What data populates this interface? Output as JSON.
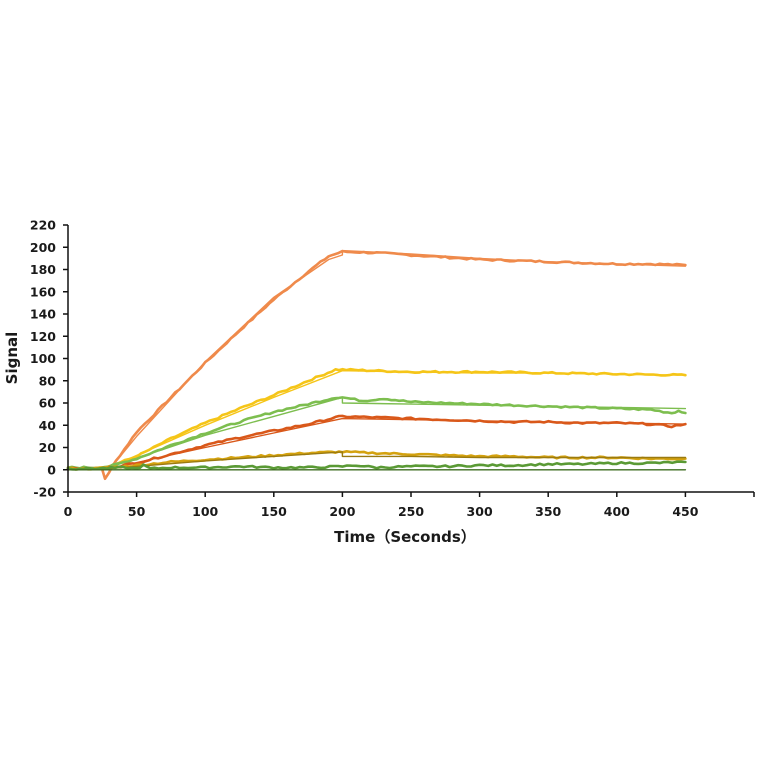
{
  "chart_data": {
    "type": "line",
    "title": "",
    "xlabel": "Time（Seconds）",
    "ylabel": "Signal",
    "xlim": [
      0,
      500
    ],
    "ylim": [
      -20,
      220
    ],
    "xticks": [
      0,
      50,
      100,
      150,
      200,
      250,
      300,
      350,
      400,
      450
    ],
    "yticks": [
      -20,
      0,
      20,
      40,
      60,
      80,
      100,
      120,
      140,
      160,
      180,
      200,
      220
    ],
    "grid": false,
    "legend": null,
    "association_end": 200,
    "series": [
      {
        "name": "curve-1-data",
        "color": "#EF8A4B",
        "kind": "data",
        "x": [
          0,
          10,
          20,
          25,
          27,
          30,
          35,
          50,
          75,
          100,
          125,
          150,
          175,
          190,
          200,
          225,
          250,
          275,
          300,
          325,
          350,
          375,
          400,
          425,
          450
        ],
        "y": [
          2,
          1,
          2,
          0,
          -8,
          -2,
          8,
          34,
          65,
          96,
          125,
          153,
          178,
          192,
          196,
          195,
          193,
          191,
          189,
          188,
          187,
          186,
          185,
          185,
          184
        ]
      },
      {
        "name": "curve-1-fit",
        "color": "#EF8A4B",
        "kind": "fit",
        "x": [
          0,
          30,
          50,
          100,
          150,
          190,
          200,
          200,
          250,
          300,
          350,
          400,
          450
        ],
        "y": [
          0,
          0,
          30,
          97,
          155,
          189,
          193,
          197,
          194,
          190,
          187,
          185,
          183
        ]
      },
      {
        "name": "curve-2-data",
        "color": "#F5C518",
        "kind": "data",
        "x": [
          0,
          20,
          30,
          50,
          75,
          100,
          125,
          150,
          175,
          195,
          200,
          250,
          300,
          350,
          400,
          450
        ],
        "y": [
          1,
          2,
          3,
          12,
          28,
          42,
          55,
          67,
          80,
          90,
          90,
          88,
          88,
          87,
          86,
          85
        ]
      },
      {
        "name": "curve-2-fit",
        "color": "#F5C518",
        "kind": "fit",
        "x": [
          0,
          30,
          100,
          150,
          200,
          250,
          300,
          350,
          400,
          450
        ],
        "y": [
          0,
          2,
          40,
          65,
          89,
          88,
          87,
          87,
          86,
          85
        ]
      },
      {
        "name": "curve-3-data",
        "color": "#7DBE4F",
        "kind": "data",
        "x": [
          0,
          20,
          30,
          50,
          75,
          100,
          125,
          150,
          175,
          195,
          200,
          215,
          230,
          250,
          275,
          300,
          325,
          350,
          375,
          400,
          425,
          440,
          445,
          450
        ],
        "y": [
          2,
          2,
          3,
          10,
          22,
          33,
          43,
          52,
          59,
          65,
          65,
          62,
          64,
          61,
          60,
          59,
          58,
          57,
          56,
          55,
          54,
          51,
          53,
          51
        ]
      },
      {
        "name": "curve-3-fit",
        "color": "#7DBE4F",
        "kind": "fit",
        "x": [
          0,
          30,
          100,
          150,
          200,
          200,
          250,
          300,
          350,
          400,
          450
        ],
        "y": [
          0,
          2,
          31,
          48,
          65,
          60,
          59,
          58,
          57,
          56,
          55
        ]
      },
      {
        "name": "curve-4-data",
        "color": "#D9581A",
        "kind": "data",
        "x": [
          0,
          20,
          30,
          50,
          75,
          100,
          125,
          150,
          175,
          195,
          200,
          225,
          250,
          275,
          300,
          325,
          350,
          375,
          400,
          425,
          440,
          450
        ],
        "y": [
          1,
          1,
          2,
          6,
          14,
          22,
          29,
          35,
          41,
          47,
          48,
          47,
          46,
          45,
          44,
          43,
          43,
          42,
          42,
          41,
          39,
          41
        ]
      },
      {
        "name": "curve-4-fit",
        "color": "#D9581A",
        "kind": "fit",
        "x": [
          0,
          30,
          100,
          150,
          200,
          250,
          300,
          350,
          400,
          450
        ],
        "y": [
          0,
          1,
          20,
          33,
          46,
          45,
          44,
          43,
          42,
          41
        ]
      },
      {
        "name": "curve-5-data",
        "color": "#D4A20F",
        "kind": "data",
        "x": [
          0,
          20,
          30,
          50,
          75,
          100,
          125,
          150,
          175,
          195,
          200,
          225,
          250,
          275,
          300,
          325,
          350,
          375,
          400,
          425,
          450
        ],
        "y": [
          1,
          1,
          2,
          4,
          7,
          9,
          11,
          13,
          15,
          16,
          16,
          15,
          14,
          13,
          12,
          12,
          11,
          11,
          11,
          10,
          10
        ]
      },
      {
        "name": "curve-5-fit",
        "color": "#9A7A10",
        "kind": "fit",
        "x": [
          0,
          30,
          100,
          150,
          200,
          200,
          250,
          300,
          350,
          400,
          450
        ],
        "y": [
          0,
          1,
          8,
          12,
          16,
          12,
          12,
          11,
          11,
          11,
          11
        ]
      },
      {
        "name": "curve-6-data",
        "color": "#5A9A35",
        "kind": "data",
        "x": [
          0,
          20,
          40,
          50,
          55,
          60,
          75,
          100,
          125,
          150,
          175,
          200,
          210,
          225,
          250,
          275,
          300,
          325,
          350,
          375,
          400,
          425,
          450
        ],
        "y": [
          1,
          1,
          2,
          1,
          4,
          1,
          2,
          2,
          3,
          2,
          2,
          3,
          4,
          2,
          3,
          3,
          4,
          4,
          5,
          5,
          6,
          6,
          7
        ]
      },
      {
        "name": "curve-6-fit",
        "color": "#3F6E22",
        "kind": "fit",
        "x": [
          0,
          450
        ],
        "y": [
          0,
          0
        ]
      }
    ]
  }
}
